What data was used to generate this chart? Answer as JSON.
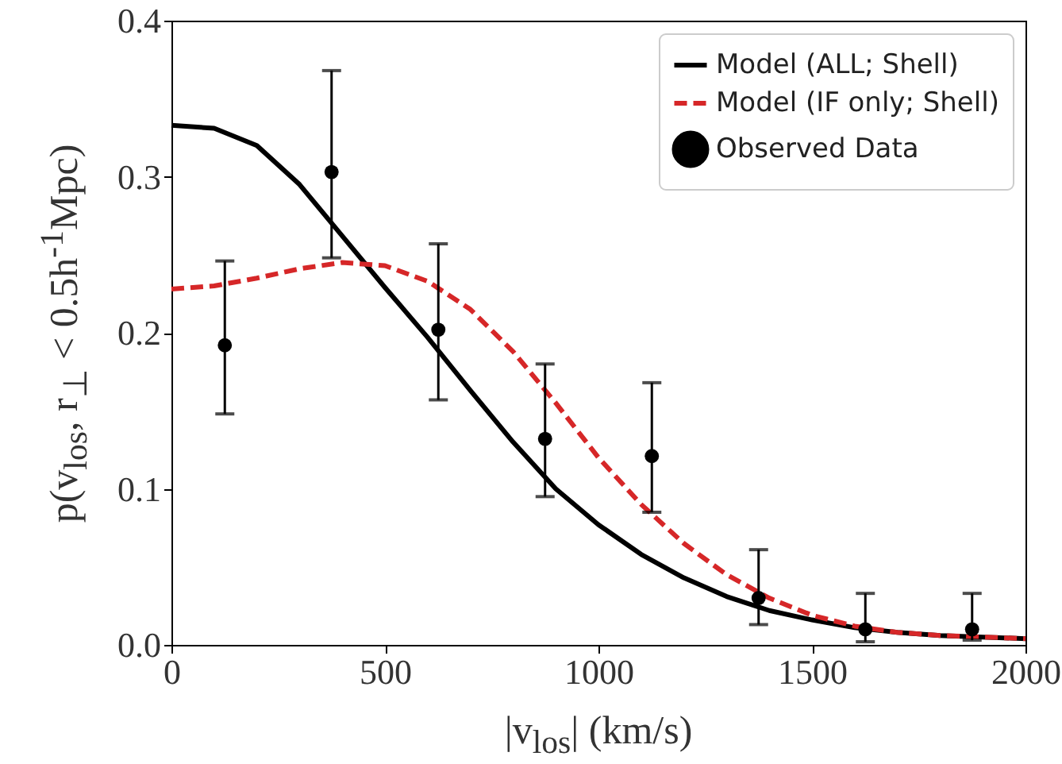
{
  "chart_data": {
    "type": "line",
    "xlabel": "|v$_{los}$| (km/s)",
    "ylabel": "p(v$_{los}$, r$_{⊥}$ < 0.5h$^{-1}$Mpc)",
    "xlim": [
      0,
      2000
    ],
    "xticks": [
      0,
      500,
      1000,
      1500,
      2000
    ],
    "ylim": [
      0,
      0.4
    ],
    "yticks": [
      {
        "value": 0,
        "label": "0.0"
      },
      0.1,
      0.2,
      0.3,
      0.4
    ],
    "grid": false,
    "legend": "top right",
    "series": [
      {
        "name": "Model (ALL; Shell)",
        "color": "#000000",
        "line_style": "solid",
        "x": [
          0,
          100,
          200,
          300,
          400,
          500,
          600,
          700,
          800,
          900,
          1000,
          1100,
          1200,
          1300,
          1400,
          1500,
          1600,
          1700,
          1800,
          1900,
          2000
        ],
        "values": [
          0.333,
          0.331,
          0.32,
          0.295,
          0.262,
          0.229,
          0.197,
          0.163,
          0.13,
          0.1,
          0.077,
          0.058,
          0.043,
          0.031,
          0.022,
          0.016,
          0.011,
          0.008,
          0.006,
          0.005,
          0.004
        ]
      },
      {
        "name": "Model (IF only; Shell)",
        "color": "#d62728",
        "line_style": "dashed",
        "x": [
          0,
          100,
          200,
          300,
          400,
          500,
          600,
          700,
          800,
          900,
          1000,
          1100,
          1200,
          1300,
          1400,
          1500,
          1600,
          1700,
          1800,
          1900,
          2000
        ],
        "values": [
          0.228,
          0.23,
          0.235,
          0.241,
          0.245,
          0.243,
          0.233,
          0.215,
          0.188,
          0.155,
          0.12,
          0.09,
          0.065,
          0.045,
          0.03,
          0.019,
          0.012,
          0.008,
          0.006,
          0.005,
          0.004
        ]
      },
      {
        "name": "Observed Data",
        "color": "#000000",
        "type": "scatter",
        "marker": "circle",
        "x": [
          125,
          375,
          625,
          875,
          1125,
          1375,
          1625,
          1875
        ],
        "values": [
          0.192,
          0.303,
          0.202,
          0.132,
          0.121,
          0.03,
          0.01,
          0.01
        ],
        "errors": [
          [
            0.148,
            0.246
          ],
          [
            0.248,
            0.368
          ],
          [
            0.157,
            0.257
          ],
          [
            0.095,
            0.18
          ],
          [
            0.085,
            0.168
          ],
          [
            0.013,
            0.061
          ],
          [
            0.002,
            0.033
          ],
          [
            0.003,
            0.033
          ]
        ]
      }
    ]
  }
}
